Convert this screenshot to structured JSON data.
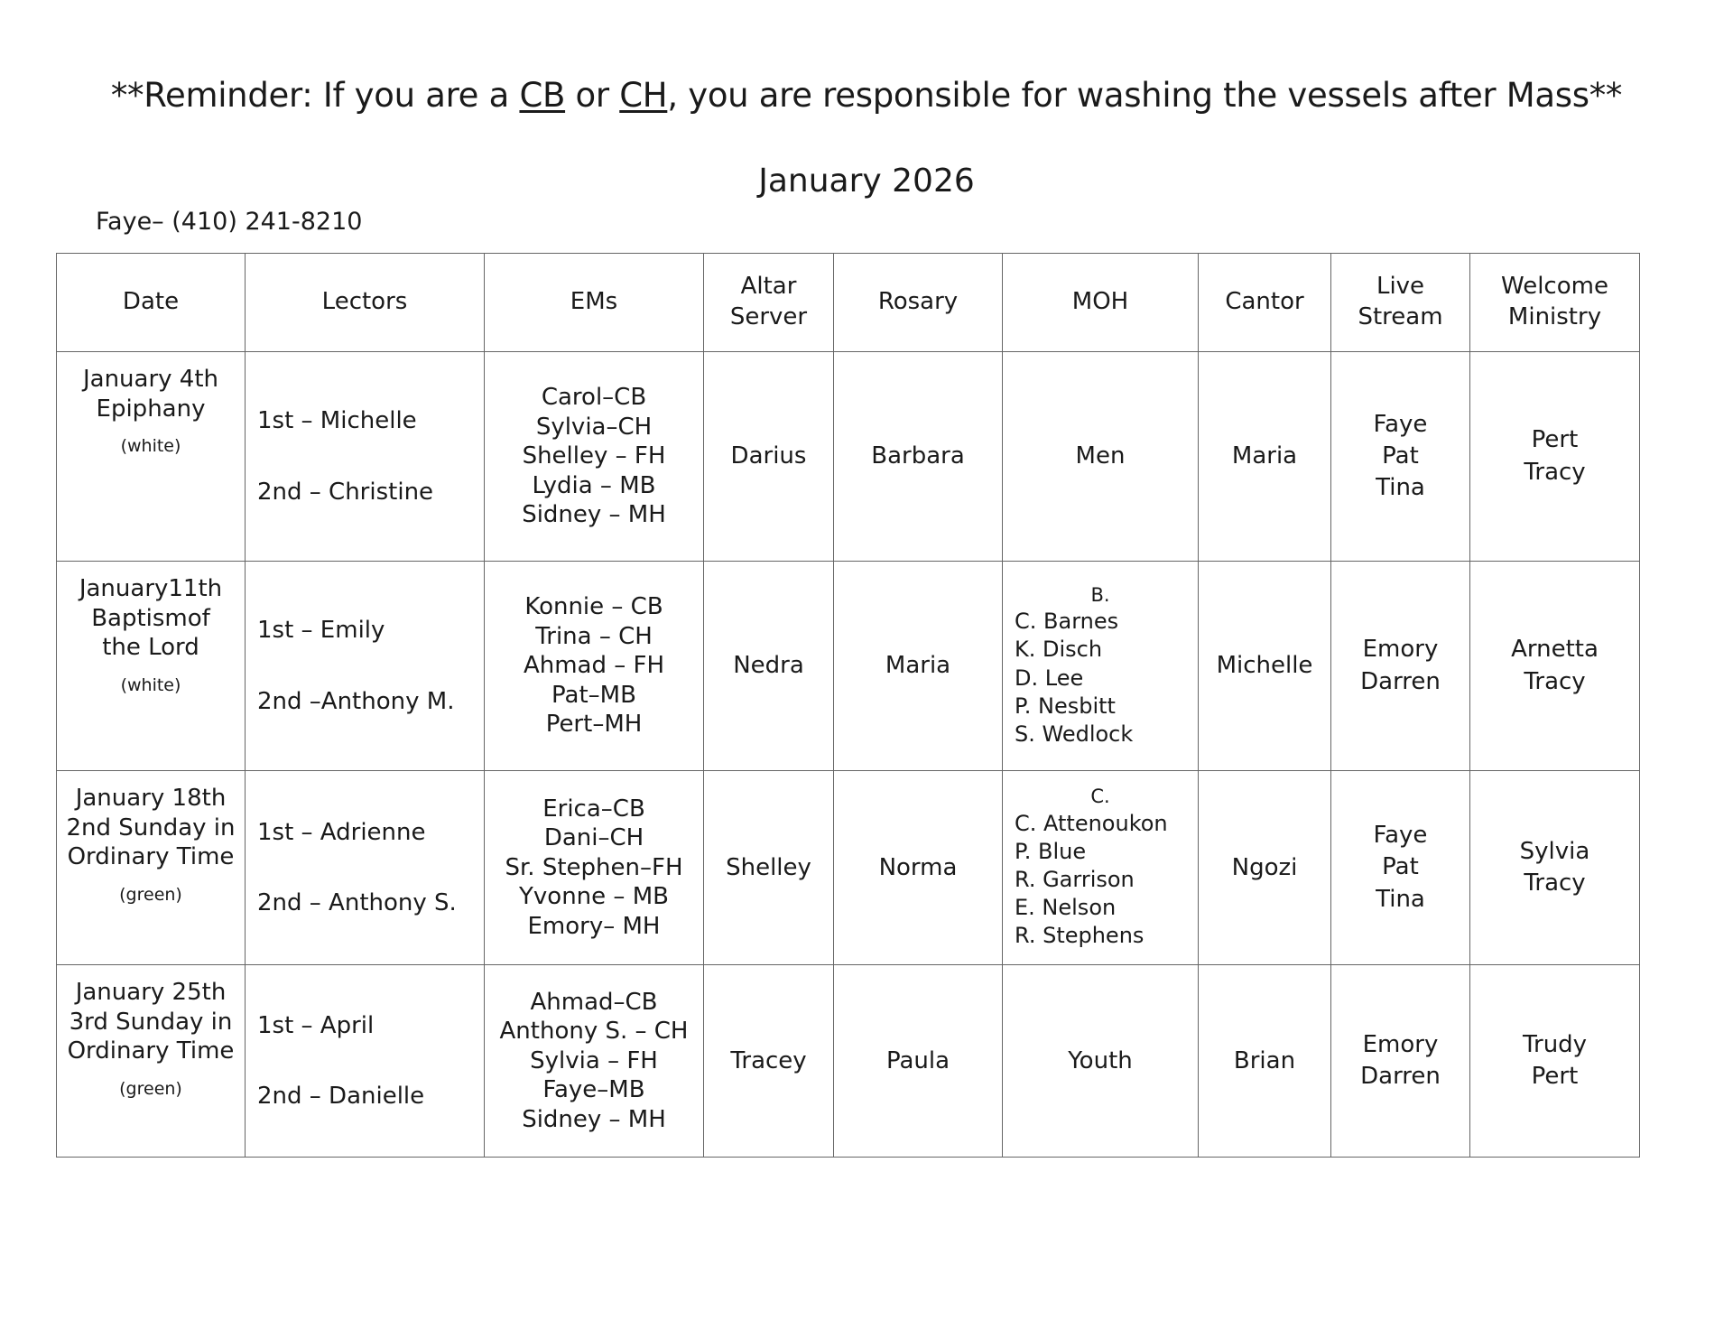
{
  "reminder": {
    "prefix": "**Reminder:  If you are a ",
    "cb": "CB",
    "or": " or ",
    "ch": "CH",
    "suffix": ", you are responsible for washing the vessels after Mass**"
  },
  "month_title": "January 2026",
  "contact": "Faye– (410) 241-8210",
  "columns": [
    "Date",
    "Lectors",
    "EMs",
    "Altar Server",
    "Rosary",
    "MOH",
    "Cantor",
    "Live Stream",
    "Welcome Ministry"
  ],
  "rows": [
    {
      "date": [
        "January 4th",
        "Epiphany"
      ],
      "color": "(white)",
      "lectors": [
        "1st – Michelle",
        "2nd – Christine"
      ],
      "ems": [
        "Carol–CB",
        "Sylvia–CH",
        "Shelley – FH",
        "Lydia – MB",
        "Sidney – MH"
      ],
      "altar_server": "Darius",
      "rosary": "Barbara",
      "moh_group": "",
      "moh": [
        "Men"
      ],
      "cantor": "Maria",
      "live_stream": [
        "Faye",
        "Pat",
        "Tina"
      ],
      "welcome": [
        "Pert",
        "Tracy"
      ]
    },
    {
      "date": [
        "January11th",
        "Baptismof",
        "the Lord"
      ],
      "color": "(white)",
      "lectors": [
        "1st – Emily",
        "2nd –Anthony M."
      ],
      "ems": [
        "Konnie – CB",
        "Trina – CH",
        "Ahmad – FH",
        "Pat–MB",
        "Pert–MH"
      ],
      "altar_server": "Nedra",
      "rosary": "Maria",
      "moh_group": "B.",
      "moh": [
        "C. Barnes",
        "K. Disch",
        "D. Lee",
        "P. Nesbitt",
        "S. Wedlock"
      ],
      "cantor": "Michelle",
      "live_stream": [
        "Emory",
        "Darren"
      ],
      "welcome": [
        "Arnetta",
        "Tracy"
      ]
    },
    {
      "date": [
        "January 18th",
        "2nd Sunday in",
        "Ordinary Time"
      ],
      "color": "(green)",
      "lectors": [
        "1st – Adrienne",
        "2nd – Anthony S."
      ],
      "ems": [
        "Erica–CB",
        "Dani–CH",
        "Sr. Stephen–FH",
        "Yvonne – MB",
        "Emory– MH"
      ],
      "altar_server": "Shelley",
      "rosary": "Norma",
      "moh_group": "C.",
      "moh": [
        "C. Attenoukon",
        "P. Blue",
        "R. Garrison",
        "E. Nelson",
        "R. Stephens"
      ],
      "cantor": "Ngozi",
      "live_stream": [
        "Faye",
        "Pat",
        "Tina"
      ],
      "welcome": [
        "Sylvia",
        "Tracy"
      ]
    },
    {
      "date": [
        "January 25th",
        "3rd Sunday in",
        "Ordinary Time"
      ],
      "color": "(green)",
      "lectors": [
        "1st – April",
        "2nd – Danielle"
      ],
      "ems": [
        "Ahmad–CB",
        "Anthony S. – CH",
        "Sylvia – FH",
        "Faye–MB",
        "Sidney – MH"
      ],
      "altar_server": "Tracey",
      "rosary": "Paula",
      "moh_group": "",
      "moh": [
        "Youth"
      ],
      "cantor": "Brian",
      "live_stream": [
        "Emory",
        "Darren"
      ],
      "welcome": [
        "Trudy",
        "Pert"
      ]
    }
  ]
}
